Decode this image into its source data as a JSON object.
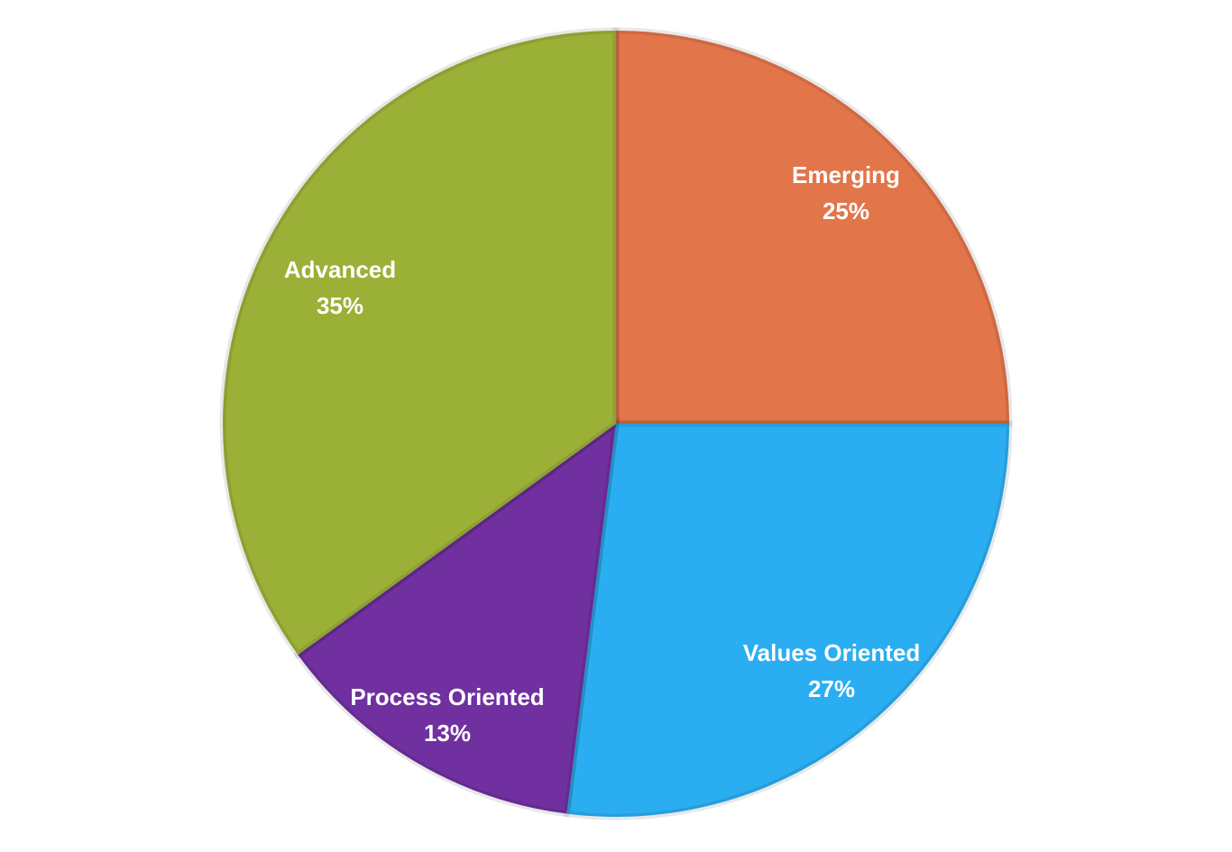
{
  "chart_data": {
    "type": "pie",
    "categories": [
      "Emerging",
      "Values Oriented",
      "Process Oriented",
      "Advanced"
    ],
    "values": [
      25,
      27,
      13,
      35
    ],
    "value_labels": [
      "25%",
      "27%",
      "13%",
      "35%"
    ],
    "colors": [
      "#e2754a",
      "#2baef1",
      "#7030a0",
      "#9bb036"
    ]
  }
}
